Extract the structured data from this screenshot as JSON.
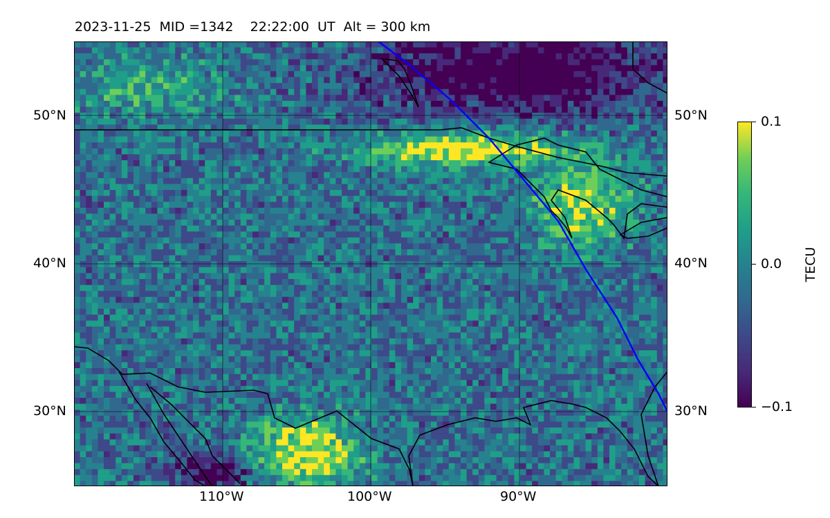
{
  "title": {
    "date": "2023-11-25",
    "mid": "MID =1342",
    "time": "22:22:00  UT",
    "alt": "Alt = 300 km"
  },
  "map": {
    "lon_range": [
      -120,
      -80
    ],
    "lat_range": [
      25,
      55
    ],
    "lat_ticks": [
      "50°N",
      "40°N",
      "30°N"
    ],
    "lon_ticks": [
      "110°W",
      "100°W",
      "90°W"
    ],
    "track_color": "#0000ff",
    "coast_color": "#000000",
    "grid": true
  },
  "colorbar": {
    "label": "TECU",
    "max_label": "0.1",
    "mid_label": "0.0",
    "min_label": "−0.1",
    "colormap": [
      "#440154",
      "#482878",
      "#3e4989",
      "#31688e",
      "#26828e",
      "#1f9e89",
      "#35b779",
      "#6ece58",
      "#fde725"
    ]
  }
}
